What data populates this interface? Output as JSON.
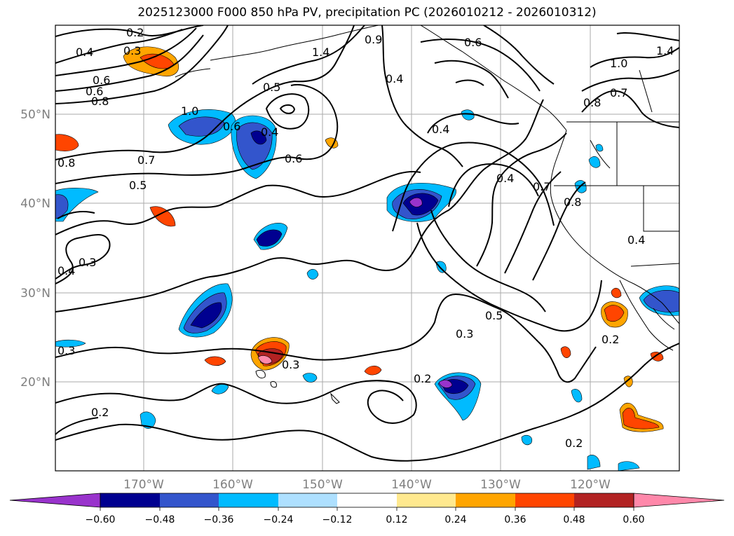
{
  "title": "2025123000 F000 850 hPa PV, precipitation PC (2026010212 - 2026010312)",
  "map": {
    "lat_labels": [
      "50°N",
      "40°N",
      "30°N",
      "20°N"
    ],
    "lon_labels": [
      "170°W",
      "160°W",
      "150°W",
      "140°W",
      "130°W",
      "120°W"
    ],
    "contour_labels": [
      {
        "id": "a1",
        "text": "0.2"
      },
      {
        "id": "a2",
        "text": "0.4"
      },
      {
        "id": "a3",
        "text": "0.3"
      },
      {
        "id": "a4",
        "text": "0.6"
      },
      {
        "id": "a5",
        "text": "0.6"
      },
      {
        "id": "a6",
        "text": "0.8"
      },
      {
        "id": "a7",
        "text": "1.0"
      },
      {
        "id": "a8",
        "text": "0.6"
      },
      {
        "id": "a9",
        "text": "0.4"
      },
      {
        "id": "a10",
        "text": "0.5"
      },
      {
        "id": "a11",
        "text": "1.4"
      },
      {
        "id": "a12",
        "text": "0.9"
      },
      {
        "id": "a13",
        "text": "0.6"
      },
      {
        "id": "a14",
        "text": "1.4"
      },
      {
        "id": "a15",
        "text": "1.0"
      },
      {
        "id": "a16",
        "text": "0.7"
      },
      {
        "id": "a17",
        "text": "0.8"
      },
      {
        "id": "a18",
        "text": "0.4"
      },
      {
        "id": "a19",
        "text": "0.4"
      },
      {
        "id": "a20",
        "text": "0.6"
      },
      {
        "id": "a21",
        "text": "0.8"
      },
      {
        "id": "a22",
        "text": "0.7"
      },
      {
        "id": "a23",
        "text": "0.5"
      },
      {
        "id": "a24",
        "text": "0.4"
      },
      {
        "id": "a25",
        "text": "0.7"
      },
      {
        "id": "a26",
        "text": "0.8"
      },
      {
        "id": "a27",
        "text": "0.3"
      },
      {
        "id": "a28",
        "text": "0.4"
      },
      {
        "id": "a29",
        "text": "0.5"
      },
      {
        "id": "a30",
        "text": "0.3"
      },
      {
        "id": "a31",
        "text": "0.3"
      },
      {
        "id": "a32",
        "text": "0.2"
      },
      {
        "id": "a33",
        "text": "0.3"
      },
      {
        "id": "a34",
        "text": "0.2"
      },
      {
        "id": "a35",
        "text": "0.2"
      },
      {
        "id": "a36",
        "text": "0.2"
      },
      {
        "id": "a37",
        "text": "0.4"
      }
    ]
  },
  "colorbar": {
    "ticks": [
      "−0.60",
      "−0.48",
      "−0.36",
      "−0.24",
      "−0.12",
      "0.12",
      "0.24",
      "0.36",
      "0.48",
      "0.60"
    ],
    "colors": [
      "#9933cc",
      "#000090",
      "#3355cc",
      "#00bbff",
      "#aee0ff",
      "#ffffff",
      "#ffe98f",
      "#ffa500",
      "#ff4500",
      "#b22222",
      "#ff88aa"
    ]
  }
}
